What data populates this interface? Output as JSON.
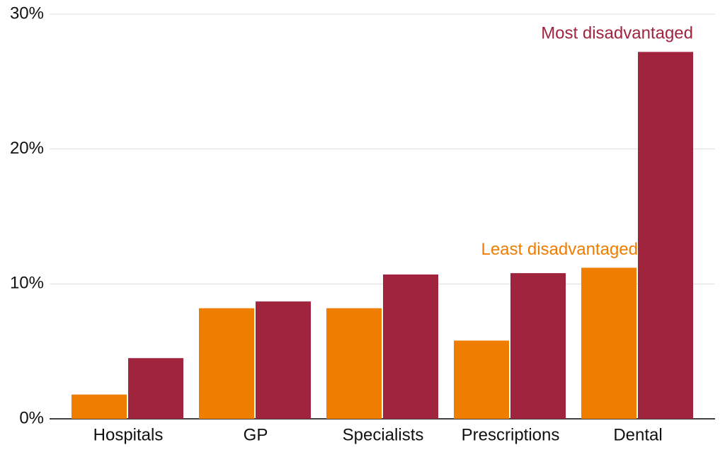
{
  "chart_data": {
    "type": "bar",
    "categories": [
      "Hospitals",
      "GP",
      "Specialists",
      "Prescriptions",
      "Dental"
    ],
    "series": [
      {
        "name": "Least disadvantaged",
        "color": "#ef7d00",
        "values": [
          1.8,
          8.2,
          8.2,
          5.8,
          11.2
        ]
      },
      {
        "name": "Most disadvantaged",
        "color": "#a0243e",
        "values": [
          4.5,
          8.7,
          10.7,
          10.8,
          27.2
        ]
      }
    ],
    "ylim": [
      0,
      30
    ],
    "yticks": [
      {
        "value": 0,
        "label": "0%"
      },
      {
        "value": 10,
        "label": "10%"
      },
      {
        "value": 20,
        "label": "20%"
      },
      {
        "value": 30,
        "label": "30%"
      }
    ],
    "grid": true
  }
}
